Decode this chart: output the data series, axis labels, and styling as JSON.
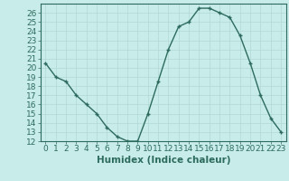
{
  "xlabel": "Humidex (Indice chaleur)",
  "ylabel": "",
  "x": [
    0,
    1,
    2,
    3,
    4,
    5,
    6,
    7,
    8,
    9,
    10,
    11,
    12,
    13,
    14,
    15,
    16,
    17,
    18,
    19,
    20,
    21,
    22,
    23
  ],
  "y": [
    20.5,
    19.0,
    18.5,
    17.0,
    16.0,
    15.0,
    13.5,
    12.5,
    12.0,
    12.0,
    15.0,
    18.5,
    22.0,
    24.5,
    25.0,
    26.5,
    26.5,
    26.0,
    25.5,
    23.5,
    20.5,
    17.0,
    14.5,
    13.0
  ],
  "line_color": "#2d6b5e",
  "marker": "+",
  "background_color": "#c8ece9",
  "grid_color": "#b0d8d4",
  "ylim": [
    12,
    27
  ],
  "xlim": [
    -0.5,
    23.5
  ],
  "yticks": [
    12,
    13,
    14,
    15,
    16,
    17,
    18,
    19,
    20,
    21,
    22,
    23,
    24,
    25,
    26
  ],
  "xticks": [
    0,
    1,
    2,
    3,
    4,
    5,
    6,
    7,
    8,
    9,
    10,
    11,
    12,
    13,
    14,
    15,
    16,
    17,
    18,
    19,
    20,
    21,
    22,
    23
  ],
  "tick_color": "#2d6b5e",
  "label_color": "#2d6b5e",
  "spine_color": "#2d6b5e",
  "font_size": 6.5,
  "xlabel_font_size": 7.5,
  "linewidth": 1.0,
  "markersize": 3.5
}
